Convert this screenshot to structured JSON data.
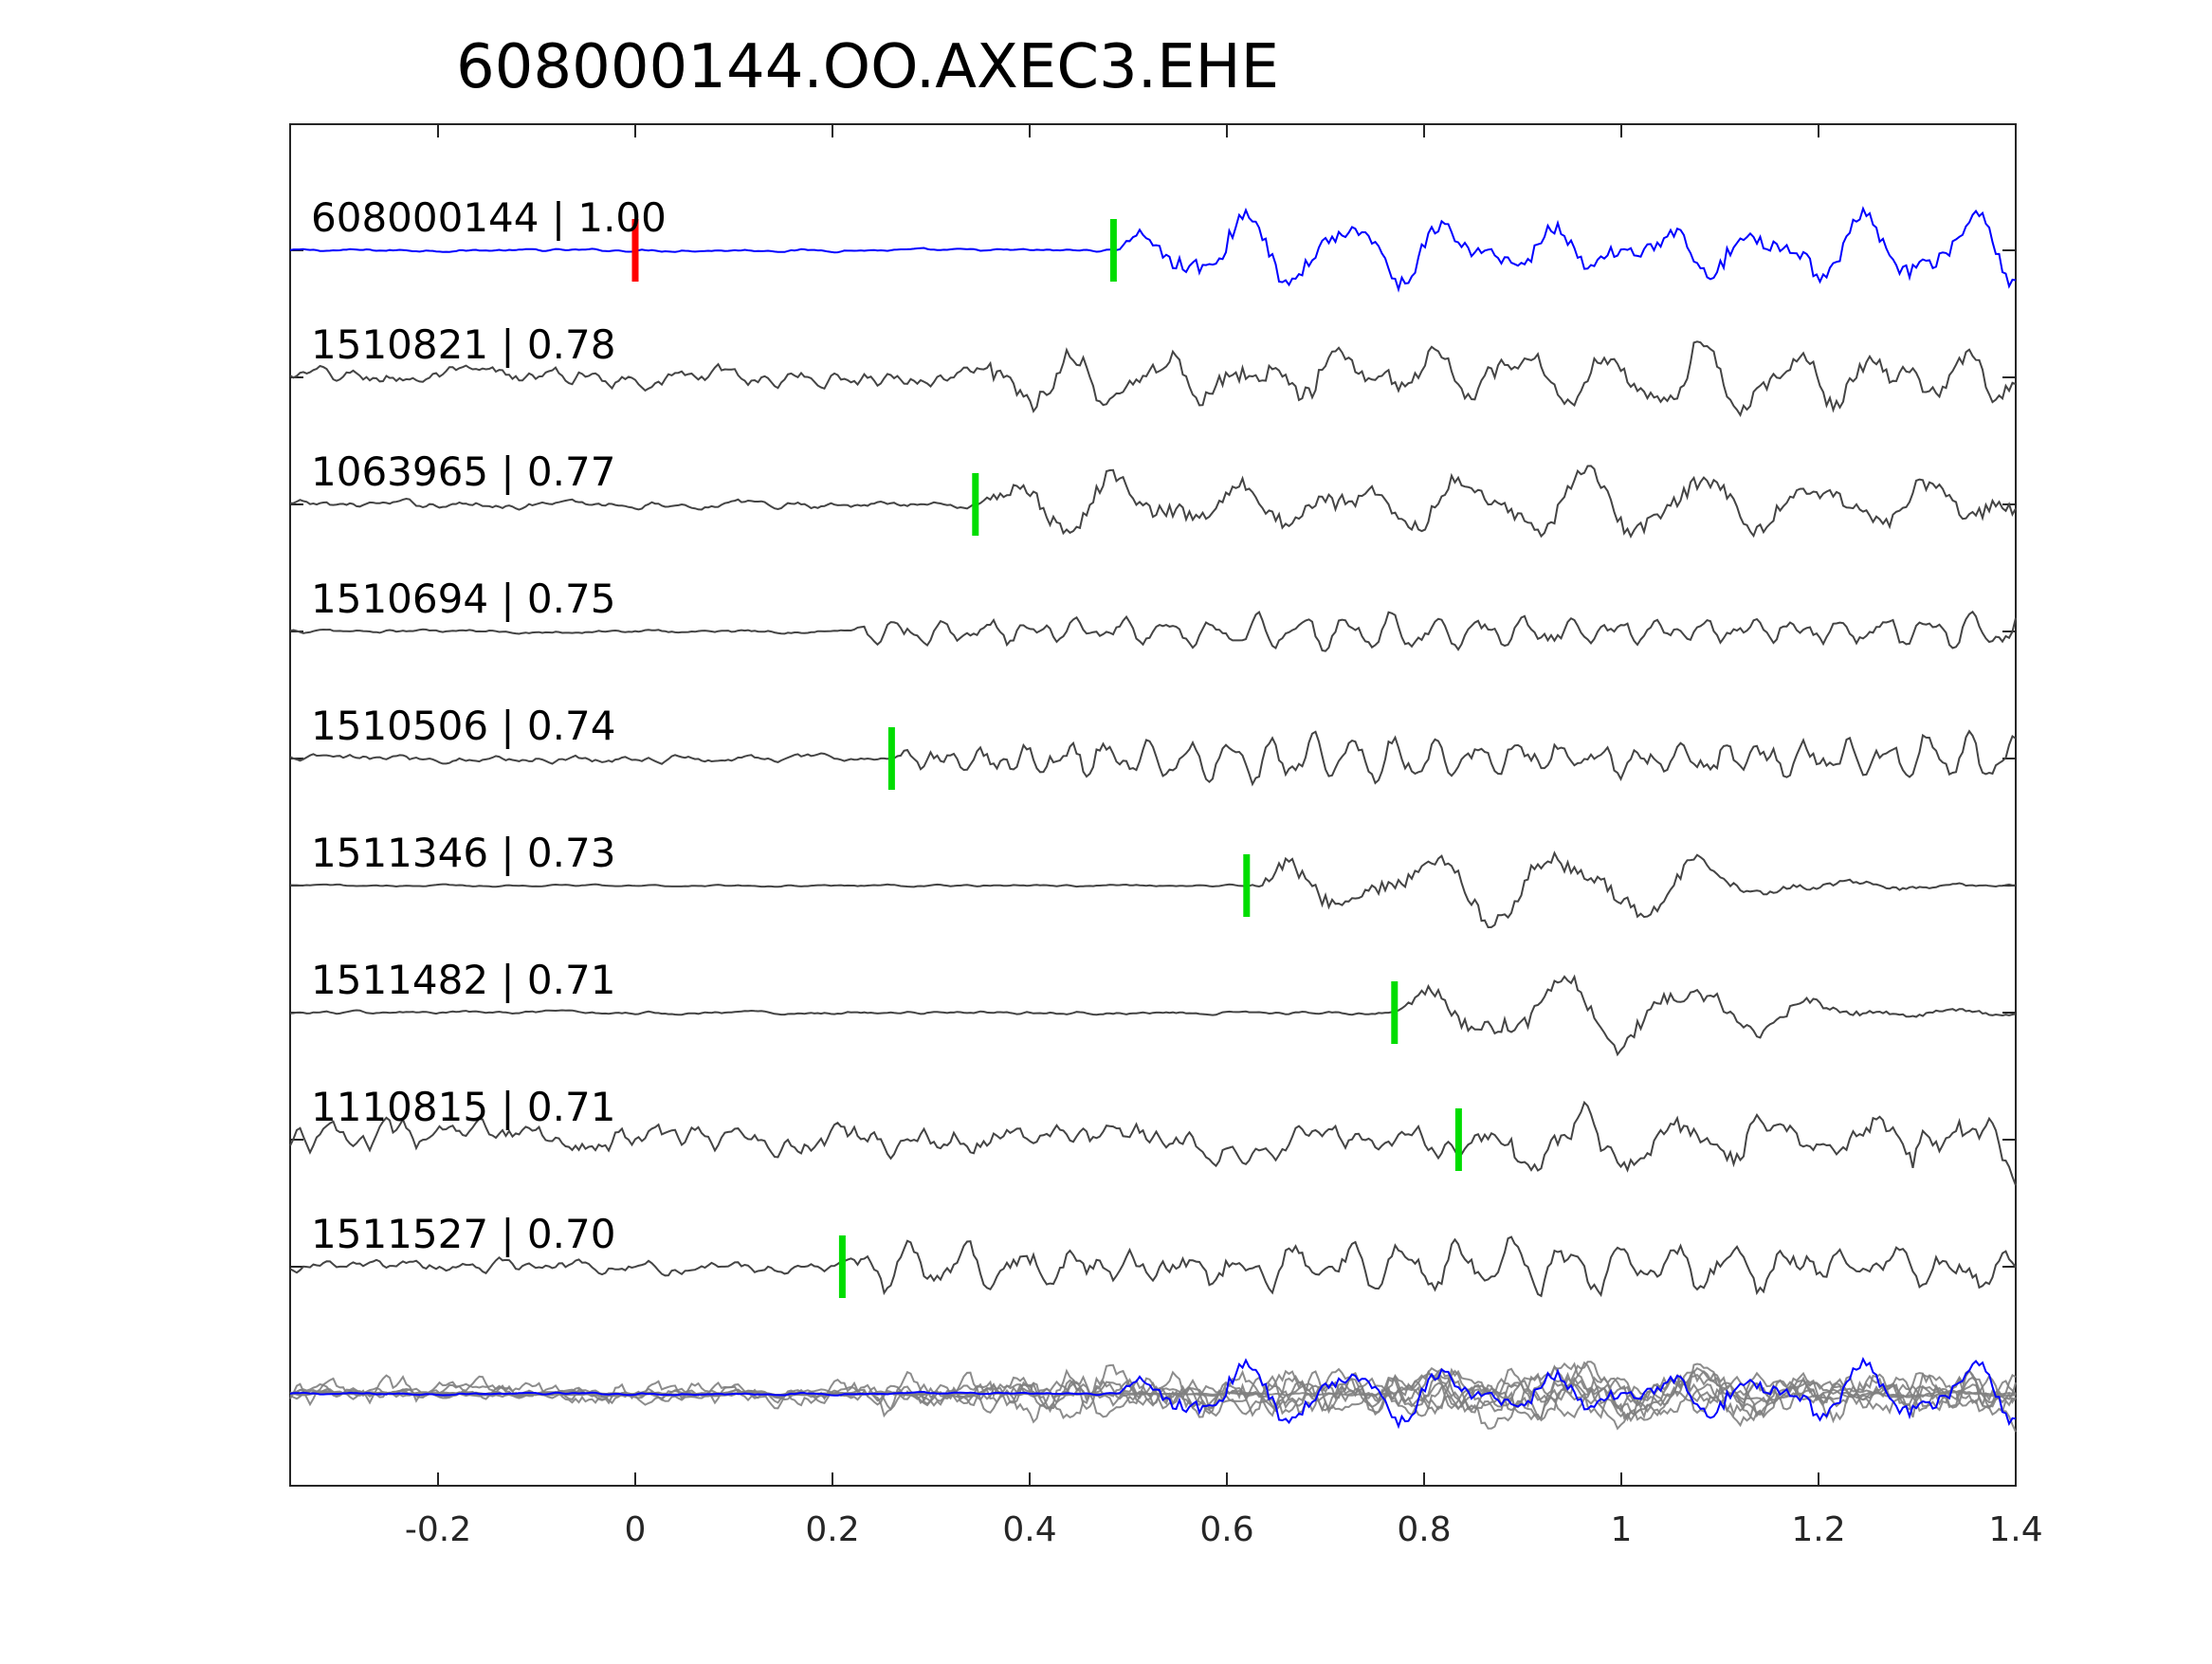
{
  "chart_data": {
    "type": "line",
    "title": "608000144.OO.AXEC3.EHE",
    "xlabel": "",
    "ylabel": "",
    "xlim": [
      -0.35,
      1.4
    ],
    "x_ticks": [
      -0.2,
      0,
      0.2,
      0.4,
      0.6,
      0.8,
      1,
      1.2,
      1.4
    ],
    "x_tick_labels": [
      "-0.2",
      "0",
      "0.2",
      "0.4",
      "0.6",
      "0.8",
      "1",
      "1.2",
      "1.4"
    ],
    "grid": false,
    "colors": {
      "template": "#0000ff",
      "match": "#444444",
      "overlay": "#808080",
      "pick_reference": "#ff0000",
      "pick": "#00dd00",
      "axis": "#262626"
    },
    "traces": [
      {
        "id": "608000144",
        "cc": "1.00",
        "label": "608000144 | 1.00",
        "color": "template",
        "pick": 0.485,
        "ref_pick": 0.0,
        "noise": 0.04,
        "onset": 0.485,
        "amp": 1.0,
        "freq": 9.5,
        "quiet_after": 1.4
      },
      {
        "id": "1510821",
        "cc": "0.78",
        "label": "1510821 | 0.78",
        "color": "match",
        "pick": null,
        "noise": 0.28,
        "onset": 0.33,
        "amp": 0.9,
        "freq": 11,
        "quiet_after": 1.4
      },
      {
        "id": "1063965",
        "cc": "0.77",
        "label": "1063965 | 0.77",
        "color": "match",
        "pick": 0.345,
        "noise": 0.12,
        "onset": 0.345,
        "amp": 1.0,
        "freq": 8.5,
        "quiet_after": 1.4
      },
      {
        "id": "1510694",
        "cc": "0.75",
        "label": "1510694 | 0.75",
        "color": "match",
        "pick": null,
        "noise": 0.06,
        "onset": 0.21,
        "amp": 0.5,
        "freq": 22,
        "quiet_after": 1.4
      },
      {
        "id": "1510506",
        "cc": "0.74",
        "label": "1510506 | 0.74",
        "color": "match",
        "pick": 0.26,
        "noise": 0.12,
        "onset": 0.26,
        "amp": 0.65,
        "freq": 24,
        "quiet_after": 1.4
      },
      {
        "id": "1511346",
        "cc": "0.73",
        "label": "1511346 | 0.73",
        "color": "match",
        "pick": 0.62,
        "noise": 0.03,
        "onset": 0.62,
        "amp": 1.0,
        "freq": 7,
        "quiet_after": 1.05
      },
      {
        "id": "1511482",
        "cc": "0.71",
        "label": "1511482 | 0.71",
        "color": "match",
        "pick": 0.77,
        "noise": 0.05,
        "onset": 0.77,
        "amp": 1.0,
        "freq": 7.5,
        "quiet_after": 1.1
      },
      {
        "id": "1110815",
        "cc": "0.71",
        "label": "1110815 | 0.71",
        "color": "match",
        "pick": 0.835,
        "noise": 0.45,
        "onset": 0.835,
        "amp": 0.9,
        "freq": 10,
        "quiet_after": 1.4
      },
      {
        "id": "1511527",
        "cc": "0.70",
        "label": "1511527 | 0.70",
        "color": "match",
        "pick": 0.21,
        "noise": 0.2,
        "onset": 0.21,
        "amp": 0.7,
        "freq": 18,
        "quiet_after": 1.4
      }
    ],
    "overlay": {
      "label": "stack",
      "description_visible": false
    }
  }
}
